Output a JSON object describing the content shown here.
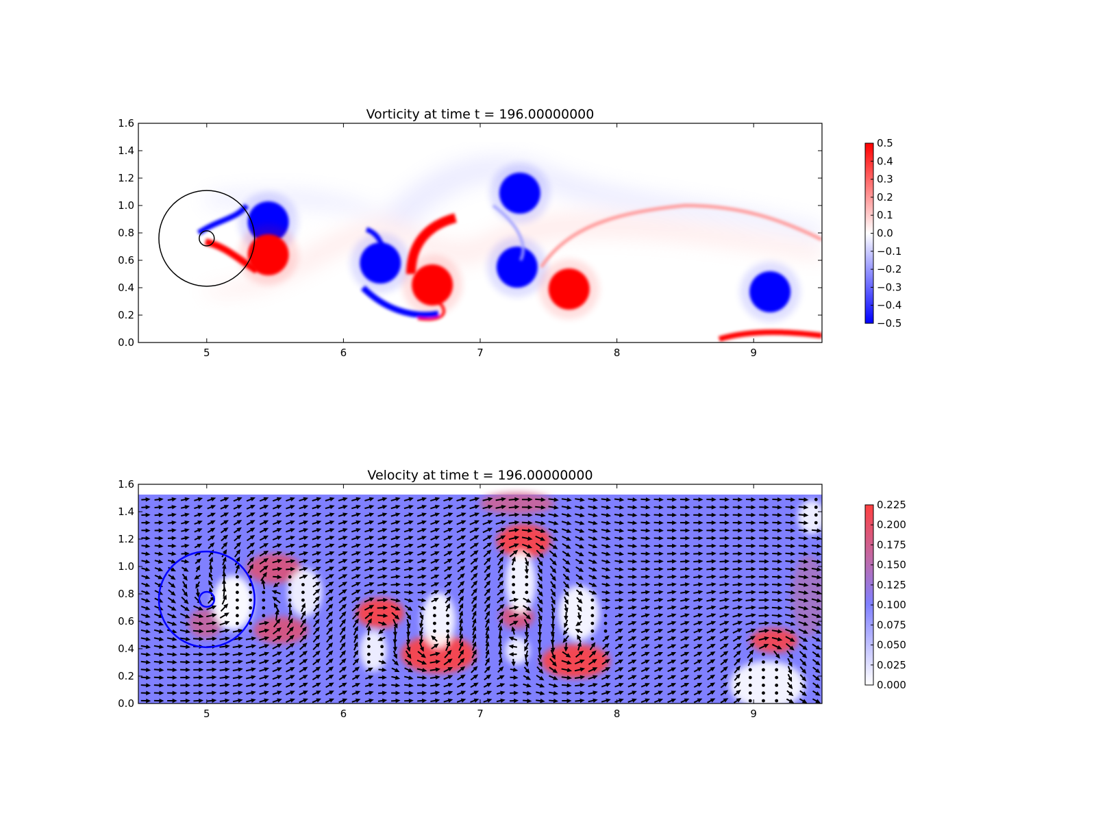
{
  "chart_data": [
    {
      "type": "heatmap",
      "title": "Vorticity at time t =   196.00000000",
      "xlabel": "",
      "ylabel": "",
      "xlim": [
        4.5,
        9.5
      ],
      "ylim": [
        0.0,
        1.6
      ],
      "xticks": [
        "5",
        "6",
        "7",
        "8",
        "9"
      ],
      "yticks": [
        "0.0",
        "0.2",
        "0.4",
        "0.6",
        "0.8",
        "1.0",
        "1.2",
        "1.4",
        "1.6"
      ],
      "colormap": "bwr",
      "clim": [
        -0.5,
        0.5
      ],
      "colorbar_ticks": [
        "0.5",
        "0.4",
        "0.3",
        "0.2",
        "0.1",
        "0.0",
        "−0.1",
        "−0.2",
        "−0.3",
        "−0.4",
        "−0.5"
      ],
      "colors": {
        "positive": "#ff0000",
        "negative": "#0000ff",
        "zero": "#ffffff"
      },
      "vortices": [
        {
          "x": 5.45,
          "y": 0.88,
          "sign": -1
        },
        {
          "x": 5.45,
          "y": 0.64,
          "sign": 1
        },
        {
          "x": 6.27,
          "y": 0.58,
          "sign": -1
        },
        {
          "x": 6.65,
          "y": 0.42,
          "sign": 1
        },
        {
          "x": 7.29,
          "y": 1.09,
          "sign": -1
        },
        {
          "x": 7.27,
          "y": 0.55,
          "sign": -1
        },
        {
          "x": 7.65,
          "y": 0.39,
          "sign": 1
        },
        {
          "x": 9.12,
          "y": 0.37,
          "sign": -1
        }
      ],
      "circles": [
        {
          "x": 5.0,
          "y": 0.76,
          "r": 0.35,
          "color": "#000000"
        },
        {
          "x": 5.0,
          "y": 0.76,
          "r": 0.055,
          "color": "#000000"
        }
      ]
    },
    {
      "type": "heatmap",
      "title": "Velocity at time t =   196.00000000",
      "xlabel": "",
      "ylabel": "",
      "xlim": [
        4.5,
        9.5
      ],
      "ylim": [
        0.0,
        1.6
      ],
      "xticks": [
        "5",
        "6",
        "7",
        "8",
        "9"
      ],
      "yticks": [
        "0.0",
        "0.2",
        "0.4",
        "0.6",
        "0.8",
        "1.0",
        "1.2",
        "1.4",
        "1.6"
      ],
      "colormap": "white-blue-red",
      "clim": [
        0.0,
        0.225
      ],
      "colorbar_ticks": [
        "0.225",
        "0.200",
        "0.175",
        "0.150",
        "0.125",
        "0.100",
        "0.075",
        "0.050",
        "0.025",
        "0.000"
      ],
      "colors": {
        "low": "#ffffff",
        "mid": "#8080ff",
        "high": "#ff4040"
      },
      "quiver": true,
      "circles": [
        {
          "x": 5.0,
          "y": 0.76,
          "r": 0.35,
          "color": "#0000ff"
        },
        {
          "x": 5.0,
          "y": 0.76,
          "r": 0.055,
          "color": "#0000ff"
        }
      ]
    }
  ]
}
